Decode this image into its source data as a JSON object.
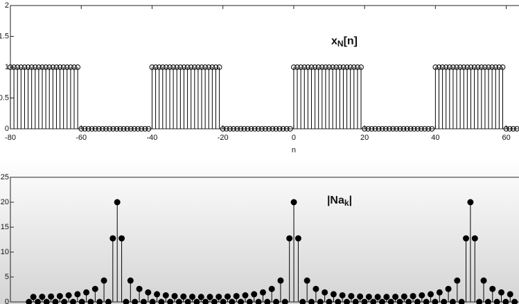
{
  "chart_data": [
    {
      "type": "stem",
      "title_parts": [
        {
          "text": "x"
        },
        {
          "text": "N",
          "sub": true
        },
        {
          "text": "[n]"
        }
      ],
      "x_label": "n",
      "x": [
        -80,
        -79,
        -78,
        -77,
        -76,
        -75,
        -74,
        -73,
        -72,
        -71,
        -70,
        -69,
        -68,
        -67,
        -66,
        -65,
        -64,
        -63,
        -62,
        -61,
        -60,
        -59,
        -58,
        -57,
        -56,
        -55,
        -54,
        -53,
        -52,
        -51,
        -50,
        -49,
        -48,
        -47,
        -46,
        -45,
        -44,
        -43,
        -42,
        -41,
        -40,
        -39,
        -38,
        -37,
        -36,
        -35,
        -34,
        -33,
        -32,
        -31,
        -30,
        -29,
        -28,
        -27,
        -26,
        -25,
        -24,
        -23,
        -22,
        -21,
        -20,
        -19,
        -18,
        -17,
        -16,
        -15,
        -14,
        -13,
        -12,
        -11,
        -10,
        -9,
        -8,
        -7,
        -6,
        -5,
        -4,
        -3,
        -2,
        -1,
        0,
        1,
        2,
        3,
        4,
        5,
        6,
        7,
        8,
        9,
        10,
        11,
        12,
        13,
        14,
        15,
        16,
        17,
        18,
        19,
        20,
        21,
        22,
        23,
        24,
        25,
        26,
        27,
        28,
        29,
        30,
        31,
        32,
        33,
        34,
        35,
        36,
        37,
        38,
        39,
        40,
        41,
        42,
        43,
        44,
        45,
        46,
        47,
        48,
        49,
        50,
        51,
        52,
        53,
        54,
        55,
        56,
        57,
        58,
        59,
        60,
        61,
        62,
        63
      ],
      "values": [
        1,
        1,
        1,
        1,
        1,
        1,
        1,
        1,
        1,
        1,
        1,
        1,
        1,
        1,
        1,
        1,
        1,
        1,
        1,
        1,
        0,
        0,
        0,
        0,
        0,
        0,
        0,
        0,
        0,
        0,
        0,
        0,
        0,
        0,
        0,
        0,
        0,
        0,
        0,
        0,
        1,
        1,
        1,
        1,
        1,
        1,
        1,
        1,
        1,
        1,
        1,
        1,
        1,
        1,
        1,
        1,
        1,
        1,
        1,
        1,
        0,
        0,
        0,
        0,
        0,
        0,
        0,
        0,
        0,
        0,
        0,
        0,
        0,
        0,
        0,
        0,
        0,
        0,
        0,
        0,
        1,
        1,
        1,
        1,
        1,
        1,
        1,
        1,
        1,
        1,
        1,
        1,
        1,
        1,
        1,
        1,
        1,
        1,
        1,
        1,
        0,
        0,
        0,
        0,
        0,
        0,
        0,
        0,
        0,
        0,
        0,
        0,
        0,
        0,
        0,
        0,
        0,
        0,
        0,
        0,
        1,
        1,
        1,
        1,
        1,
        1,
        1,
        1,
        1,
        1,
        1,
        1,
        1,
        1,
        1,
        1,
        1,
        1,
        1,
        1,
        0,
        0,
        0,
        0
      ],
      "color": "#000000",
      "marker_filled": false,
      "xlim": [
        -80,
        63.6
      ],
      "xticks": [
        -80,
        -60,
        -40,
        -20,
        0,
        20,
        40,
        60
      ],
      "ylim": [
        0,
        2
      ],
      "yticks": [
        0,
        0.5,
        1,
        1.5,
        2
      ]
    },
    {
      "type": "stem",
      "title_parts": [
        {
          "text": "|Na"
        },
        {
          "text": "k",
          "sub": true
        },
        {
          "text": "|"
        }
      ],
      "x": [
        -60,
        -59,
        -58,
        -57,
        -56,
        -55,
        -54,
        -53,
        -52,
        -51,
        -50,
        -49,
        -48,
        -47,
        -46,
        -45,
        -44,
        -43,
        -42,
        -41,
        -40,
        -39,
        -38,
        -37,
        -36,
        -35,
        -34,
        -33,
        -32,
        -31,
        -30,
        -29,
        -28,
        -27,
        -26,
        -25,
        -24,
        -23,
        -22,
        -21,
        -20,
        -19,
        -18,
        -17,
        -16,
        -15,
        -14,
        -13,
        -12,
        -11,
        -10,
        -9,
        -8,
        -7,
        -6,
        -5,
        -4,
        -3,
        -2,
        -1,
        0,
        1,
        2,
        3,
        4,
        5,
        6,
        7,
        8,
        9,
        10,
        11,
        12,
        13,
        14,
        15,
        16,
        17,
        18,
        19,
        20,
        21,
        22,
        23,
        24,
        25,
        26,
        27,
        28,
        29,
        30,
        31,
        32,
        33,
        34,
        35,
        36,
        37,
        38,
        39,
        40,
        41,
        42,
        43,
        44,
        45,
        46,
        47,
        48,
        49,
        50
      ],
      "values": [
        0,
        1.0,
        0,
        1.03,
        0,
        1.08,
        0,
        1.17,
        0,
        1.32,
        0,
        1.54,
        0,
        1.91,
        0,
        2.61,
        0,
        4.28,
        0,
        12.75,
        20,
        12.75,
        0,
        4.28,
        0,
        2.61,
        0,
        1.91,
        0,
        1.54,
        0,
        1.32,
        0,
        1.17,
        0,
        1.08,
        0,
        1.03,
        0,
        1.0,
        0,
        1.0,
        0,
        1.03,
        0,
        1.08,
        0,
        1.17,
        0,
        1.32,
        0,
        1.54,
        0,
        1.91,
        0,
        2.61,
        0,
        4.28,
        0,
        12.75,
        20,
        12.75,
        0,
        4.28,
        0,
        2.61,
        0,
        1.91,
        0,
        1.54,
        0,
        1.32,
        0,
        1.17,
        0,
        1.08,
        0,
        1.03,
        0,
        1.0,
        0,
        1.0,
        0,
        1.03,
        0,
        1.08,
        0,
        1.17,
        0,
        1.32,
        0,
        1.54,
        0,
        1.91,
        0,
        2.61,
        0,
        4.28,
        0,
        12.75,
        20,
        12.75,
        0,
        4.28,
        0,
        2.61,
        0,
        1.91,
        0,
        1.54,
        0
      ],
      "color": "#000000",
      "marker_filled": true,
      "xlim": [
        -64.2,
        51
      ],
      "xticks": [],
      "ylim": [
        0,
        25
      ],
      "yticks": [
        0,
        5,
        10,
        15,
        20,
        25
      ]
    }
  ]
}
